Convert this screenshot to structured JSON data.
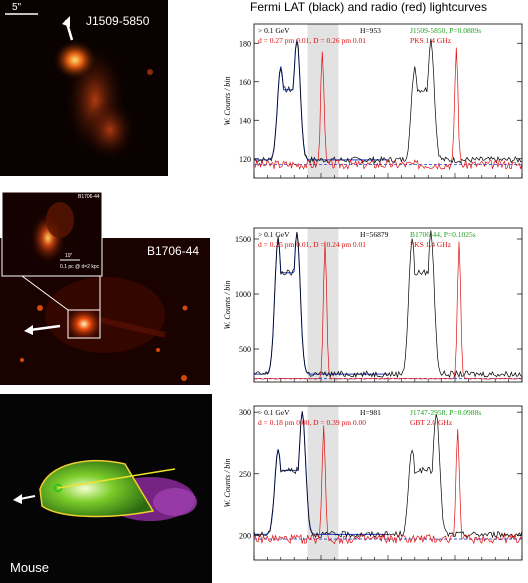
{
  "figure_title": "Fermi LAT (black) and radio (red) lightcurves",
  "images": [
    {
      "label": "J1509-5850",
      "scale_label": "5\""
    },
    {
      "label": "B1706-44",
      "inset_label": "B1706-44",
      "inset_scale": "10\"",
      "inset_scale2": "0.1 pc @ d=2 kpc"
    },
    {
      "label": "Mouse"
    }
  ],
  "chart_data": [
    {
      "type": "line",
      "ylabel": "W. Counts / bin",
      "ylim": [
        110,
        190
      ],
      "yticks": [
        120,
        140,
        160,
        180
      ],
      "annotations": {
        "energy": "> 0.1 GeV",
        "h": "H=953",
        "pulsar": "J1509-5850, P=0.0889s",
        "dd": "d = 0.27 pm 0.01, D = 0.26 pm 0.01",
        "radio": "PKS 1.4 GHz"
      },
      "background_level": 117,
      "gamma_peaks": [
        {
          "phase": 0.2,
          "height": 168
        },
        {
          "phase": 0.32,
          "height": 182
        }
      ],
      "radio_peak": {
        "phase": 0.51,
        "height": 178
      }
    },
    {
      "type": "line",
      "ylabel": "W. Counts / bin",
      "ylim": [
        200,
        1600
      ],
      "yticks": [
        500,
        1000,
        1500
      ],
      "annotations": {
        "energy": "> 0.1 GeV",
        "h": "H=56879",
        "pulsar": "B1706-44, P=0.1025s",
        "dd": "d = 0.25 pm 0.01, D = 0.24 pm 0.01",
        "radio": "PKS 1.4 GHz"
      },
      "background_level": 230,
      "gamma_peaks": [
        {
          "phase": 0.18,
          "height": 1500
        },
        {
          "phase": 0.32,
          "height": 1560
        }
      ],
      "radio_peak": {
        "phase": 0.53,
        "height": 1480
      }
    },
    {
      "type": "line",
      "ylabel": "W. Counts / bin",
      "ylim": [
        180,
        305
      ],
      "yticks": [
        200,
        250,
        300
      ],
      "annotations": {
        "energy": "> 0.1 GeV",
        "h": "H=981",
        "pulsar": "J1747-2958, P=0.0988s",
        "dd": "d = 0.18 pm 0.00, D = 0.39 pm 0.00",
        "radio": "GBT 2.0 GHz"
      },
      "background_level": 197,
      "gamma_peaks": [
        {
          "phase": 0.18,
          "height": 270
        },
        {
          "phase": 0.36,
          "height": 300
        }
      ],
      "radio_peak": {
        "phase": 0.52,
        "height": 290
      }
    }
  ]
}
